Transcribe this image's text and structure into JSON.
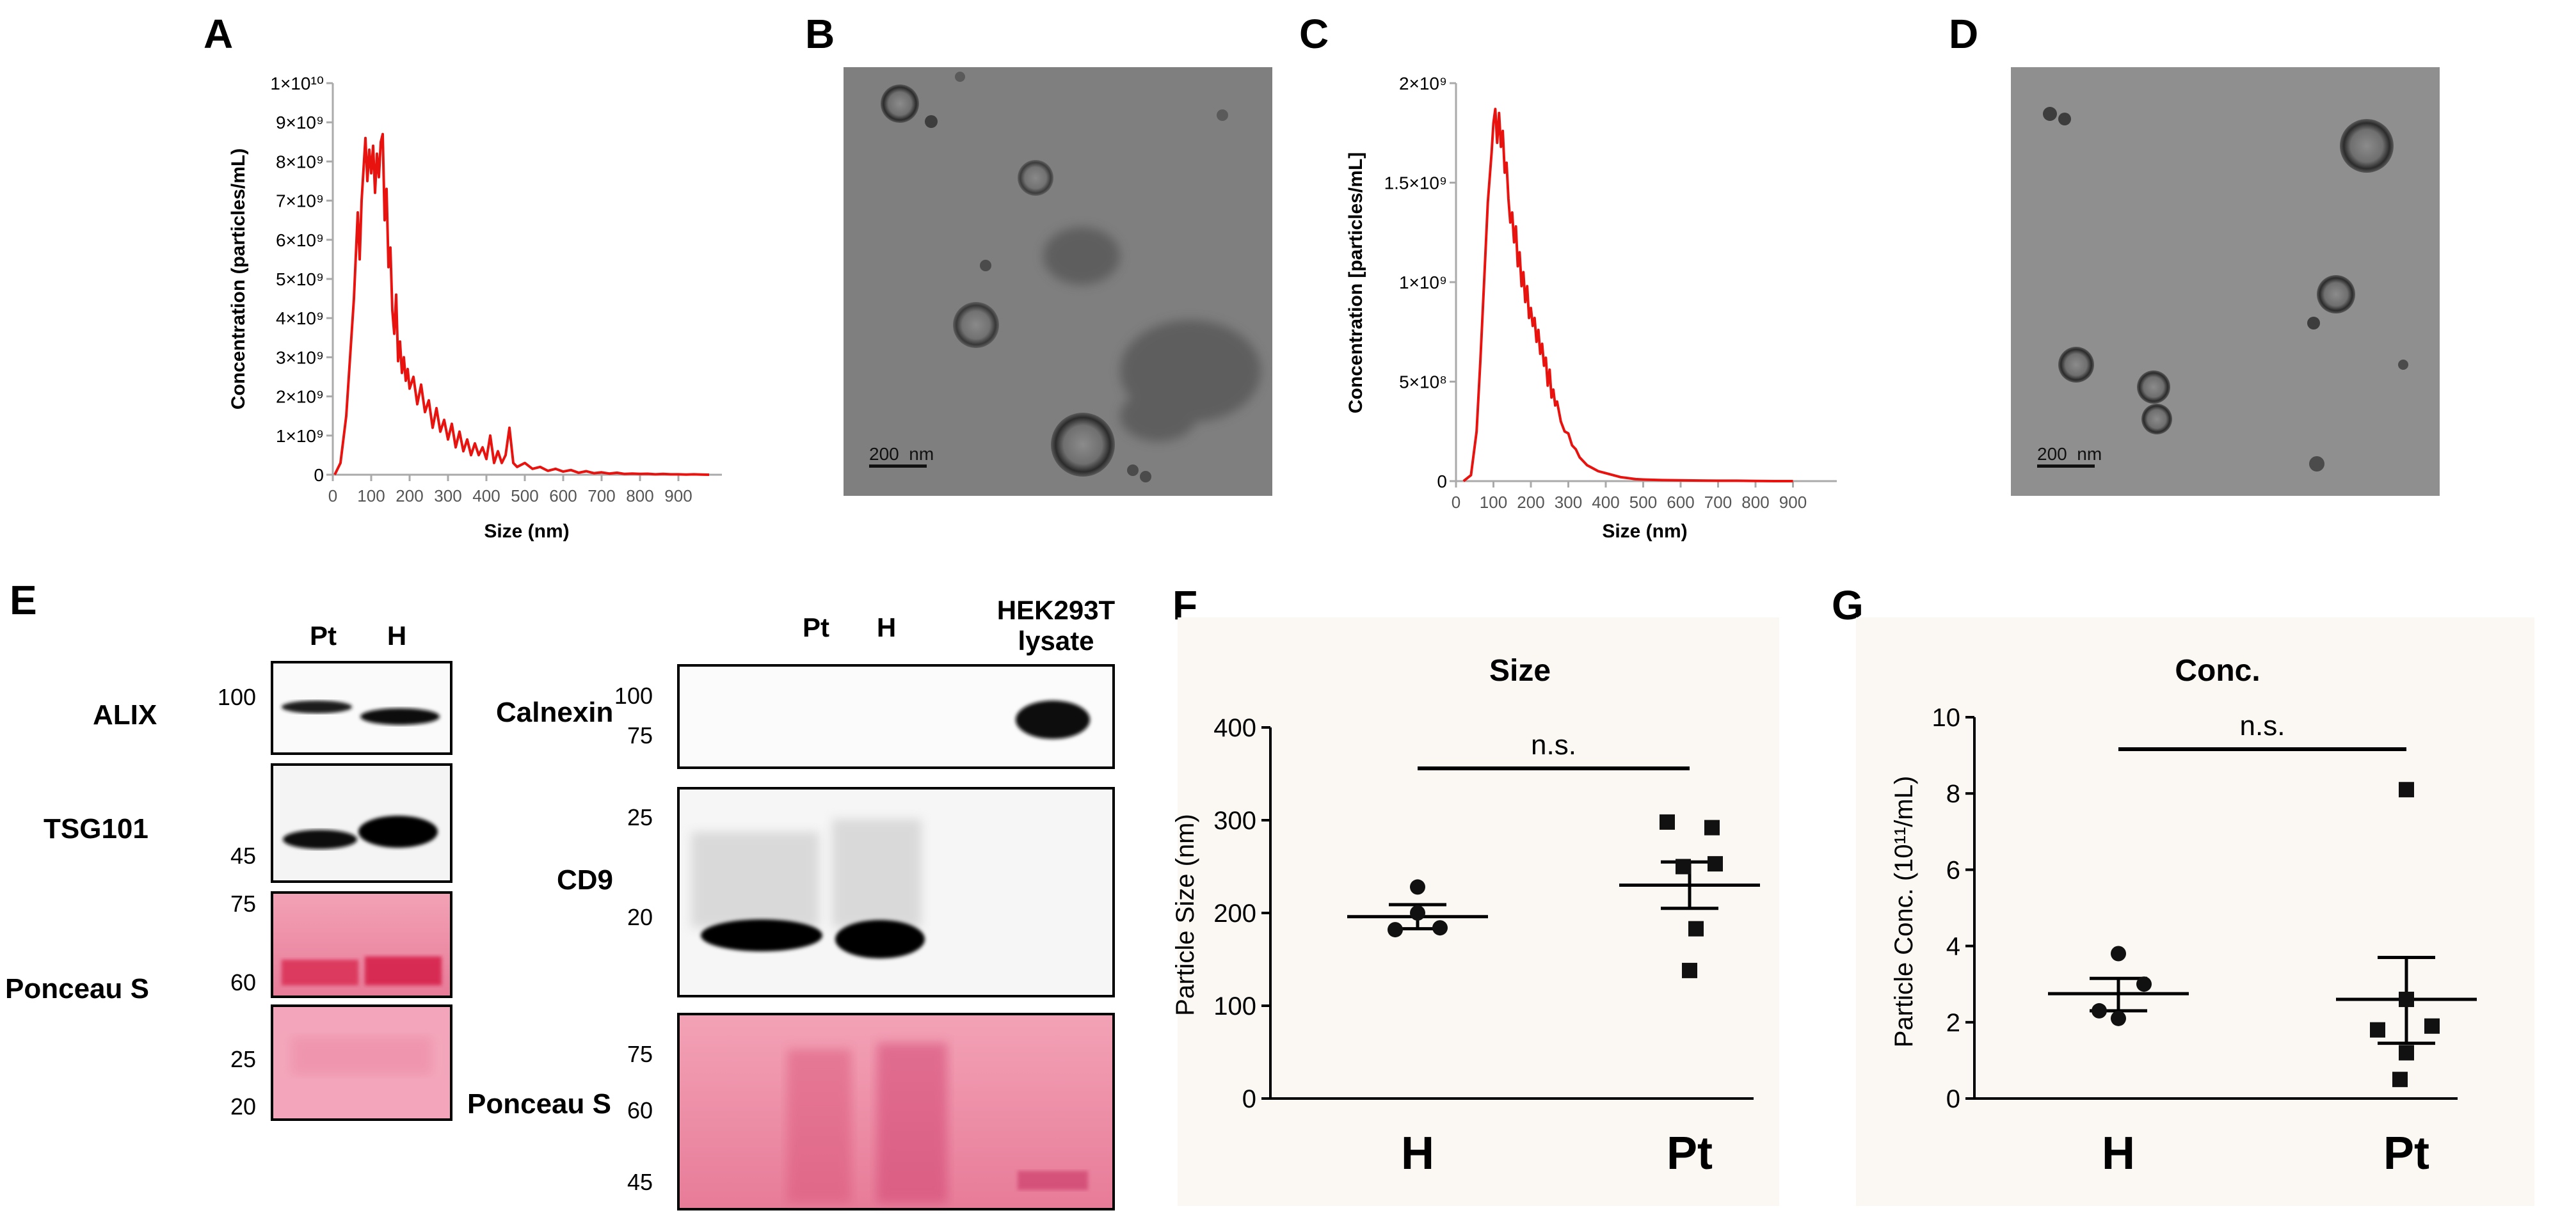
{
  "panels": {
    "A": {
      "letter": "A",
      "ylabel": "Concentration (particles/mL)",
      "xlabel": "Size (nm)",
      "yticks": [
        "0",
        "1×10⁹",
        "2×10⁹",
        "3×10⁹",
        "4×10⁹",
        "5×10⁹",
        "6×10⁹",
        "7×10⁹",
        "8×10⁹",
        "9×10⁹",
        "1×10¹⁰"
      ],
      "xticks": [
        "0",
        "100",
        "200",
        "300",
        "400",
        "500",
        "600",
        "700",
        "800",
        "900"
      ]
    },
    "B": {
      "letter": "B",
      "scalebar": "200  nm"
    },
    "C": {
      "letter": "C",
      "ylabel": "Concentration [particles/mL]",
      "xlabel": "Size (nm)",
      "yticks": [
        "0",
        "5×10⁸",
        "1×10⁹",
        "1.5×10⁹",
        "2×10⁹"
      ],
      "xticks": [
        "0",
        "100",
        "200",
        "300",
        "400",
        "500",
        "600",
        "700",
        "800",
        "900"
      ]
    },
    "D": {
      "letter": "D",
      "scalebar": "200  nm"
    },
    "E": {
      "letter": "E",
      "left": {
        "lanes": [
          "Pt",
          "H"
        ],
        "rows": [
          "ALIX",
          "TSG101",
          "Ponceau S"
        ],
        "markers": {
          "alix": [
            "100"
          ],
          "tsg": [
            "45"
          ],
          "ponceau_top": [
            "75",
            "60"
          ],
          "ponceau_bottom": [
            "25",
            "20"
          ]
        }
      },
      "right": {
        "lanes": [
          "Pt",
          "H",
          "HEK293T",
          "lysate"
        ],
        "rows": [
          "Calnexin",
          "CD9",
          "Ponceau S"
        ],
        "markers": {
          "calnexin": [
            "100",
            "75"
          ],
          "cd9": [
            "25",
            "20"
          ],
          "ponceau": [
            "75",
            "60",
            "45"
          ]
        }
      }
    },
    "F": {
      "letter": "F",
      "title": "Size",
      "ylabel": "Particle Size (nm)",
      "yticks": [
        "0",
        "100",
        "200",
        "300",
        "400"
      ],
      "groups": [
        "H",
        "Pt"
      ],
      "annotation": "n.s."
    },
    "G": {
      "letter": "G",
      "title": "Conc.",
      "ylabel": "Particle Conc. (10¹¹/mL)",
      "yticks": [
        "0",
        "2",
        "4",
        "6",
        "8",
        "10"
      ],
      "groups": [
        "H",
        "Pt"
      ],
      "annotation": "n.s."
    }
  },
  "chart_data": [
    {
      "panel": "A",
      "type": "line",
      "xlabel": "Size (nm)",
      "ylabel": "Concentration (particles/mL)",
      "xlim": [
        0,
        1000
      ],
      "ylim": [
        0,
        10000000000
      ],
      "series": [
        {
          "color": "#e8130f",
          "x": [
            5,
            20,
            35,
            45,
            55,
            65,
            70,
            75,
            80,
            85,
            90,
            95,
            100,
            105,
            110,
            115,
            120,
            125,
            130,
            135,
            140,
            145,
            150,
            155,
            160,
            165,
            170,
            175,
            180,
            185,
            190,
            195,
            200,
            210,
            220,
            230,
            240,
            250,
            260,
            270,
            280,
            290,
            300,
            310,
            320,
            330,
            340,
            350,
            360,
            370,
            380,
            390,
            400,
            410,
            420,
            430,
            440,
            450,
            460,
            470,
            480,
            500,
            520,
            540,
            560,
            580,
            600,
            620,
            640,
            660,
            680,
            700,
            720,
            740,
            760,
            780,
            800,
            820,
            840,
            860,
            880,
            900,
            920,
            940,
            960,
            980
          ],
          "y": [
            0,
            300000000,
            1500000000,
            3000000000,
            4500000000,
            6700000000,
            5500000000,
            7000000000,
            7800000000,
            8600000000,
            7500000000,
            8300000000,
            7700000000,
            8400000000,
            7200000000,
            8200000000,
            7600000000,
            8500000000,
            8700000000,
            6500000000,
            7300000000,
            5300000000,
            5800000000,
            4200000000,
            3600000000,
            4600000000,
            2900000000,
            3400000000,
            2600000000,
            3000000000,
            2400000000,
            2700000000,
            2200000000,
            2500000000,
            1800000000,
            2300000000,
            1600000000,
            1900000000,
            1200000000,
            1700000000,
            1100000000,
            1400000000,
            900000000,
            1300000000,
            700000000,
            1100000000,
            600000000,
            900000000,
            500000000,
            800000000,
            500000000,
            700000000,
            400000000,
            1000000000,
            300000000,
            600000000,
            300000000,
            500000000,
            1200000000,
            300000000,
            200000000,
            300000000,
            150000000,
            200000000,
            100000000,
            150000000,
            80000000,
            120000000,
            50000000,
            90000000,
            40000000,
            60000000,
            30000000,
            50000000,
            20000000,
            30000000,
            20000000,
            25000000,
            10000000,
            20000000,
            10000000,
            10000000,
            5000000,
            10000000,
            5000000,
            0
          ]
        }
      ]
    },
    {
      "panel": "C",
      "type": "line",
      "xlabel": "Size (nm)",
      "ylabel": "Concentration [particles/mL]",
      "xlim": [
        0,
        1000
      ],
      "ylim": [
        0,
        2000000000
      ],
      "series": [
        {
          "color": "#e8130f",
          "x": [
            20,
            40,
            55,
            65,
            75,
            85,
            95,
            100,
            105,
            110,
            115,
            120,
            125,
            130,
            135,
            140,
            145,
            150,
            155,
            160,
            165,
            170,
            175,
            180,
            185,
            190,
            195,
            200,
            205,
            210,
            215,
            220,
            225,
            230,
            235,
            240,
            245,
            250,
            255,
            260,
            265,
            270,
            280,
            290,
            300,
            310,
            320,
            330,
            340,
            350,
            360,
            380,
            400,
            420,
            440,
            460,
            480,
            500,
            550,
            600,
            650,
            700,
            750,
            800,
            850,
            900
          ],
          "y": [
            0,
            30000000,
            250000000,
            600000000,
            1000000000,
            1400000000,
            1650000000,
            1800000000,
            1870000000,
            1700000000,
            1850000000,
            1680000000,
            1760000000,
            1550000000,
            1600000000,
            1420000000,
            1300000000,
            1350000000,
            1200000000,
            1280000000,
            1080000000,
            1150000000,
            980000000,
            1050000000,
            900000000,
            980000000,
            820000000,
            870000000,
            780000000,
            820000000,
            700000000,
            760000000,
            640000000,
            690000000,
            580000000,
            620000000,
            480000000,
            560000000,
            420000000,
            460000000,
            380000000,
            400000000,
            300000000,
            250000000,
            240000000,
            180000000,
            160000000,
            120000000,
            100000000,
            80000000,
            70000000,
            50000000,
            40000000,
            30000000,
            20000000,
            15000000,
            10000000,
            8000000,
            5000000,
            4000000,
            3000000,
            2000000,
            2000000,
            1000000,
            0,
            0
          ]
        }
      ]
    },
    {
      "panel": "F",
      "type": "scatter",
      "title": "Size",
      "ylabel": "Particle Size (nm)",
      "ylim": [
        0,
        400
      ],
      "categories": [
        "H",
        "Pt"
      ],
      "series": [
        {
          "name": "H",
          "marker": "circle",
          "values": [
            228,
            200,
            184,
            182
          ],
          "mean": 196,
          "sem": [
            183,
            209
          ]
        },
        {
          "name": "Pt",
          "marker": "square",
          "values": [
            298,
            292,
            253,
            250,
            183,
            138
          ],
          "mean": 230,
          "sem": [
            205,
            255
          ]
        }
      ],
      "significance": "n.s."
    },
    {
      "panel": "G",
      "type": "scatter",
      "title": "Conc.",
      "ylabel": "Particle Conc. (10¹¹/mL)",
      "ylim": [
        0,
        10
      ],
      "categories": [
        "H",
        "Pt"
      ],
      "series": [
        {
          "name": "H",
          "marker": "circle",
          "values": [
            3.8,
            3.0,
            2.3,
            2.1
          ],
          "mean": 2.75,
          "sem": [
            2.3,
            3.15
          ]
        },
        {
          "name": "Pt",
          "marker": "square",
          "values": [
            8.1,
            2.6,
            1.9,
            1.8,
            1.2,
            0.5
          ],
          "mean": 2.6,
          "sem": [
            1.45,
            3.7
          ]
        }
      ],
      "significance": "n.s."
    }
  ]
}
